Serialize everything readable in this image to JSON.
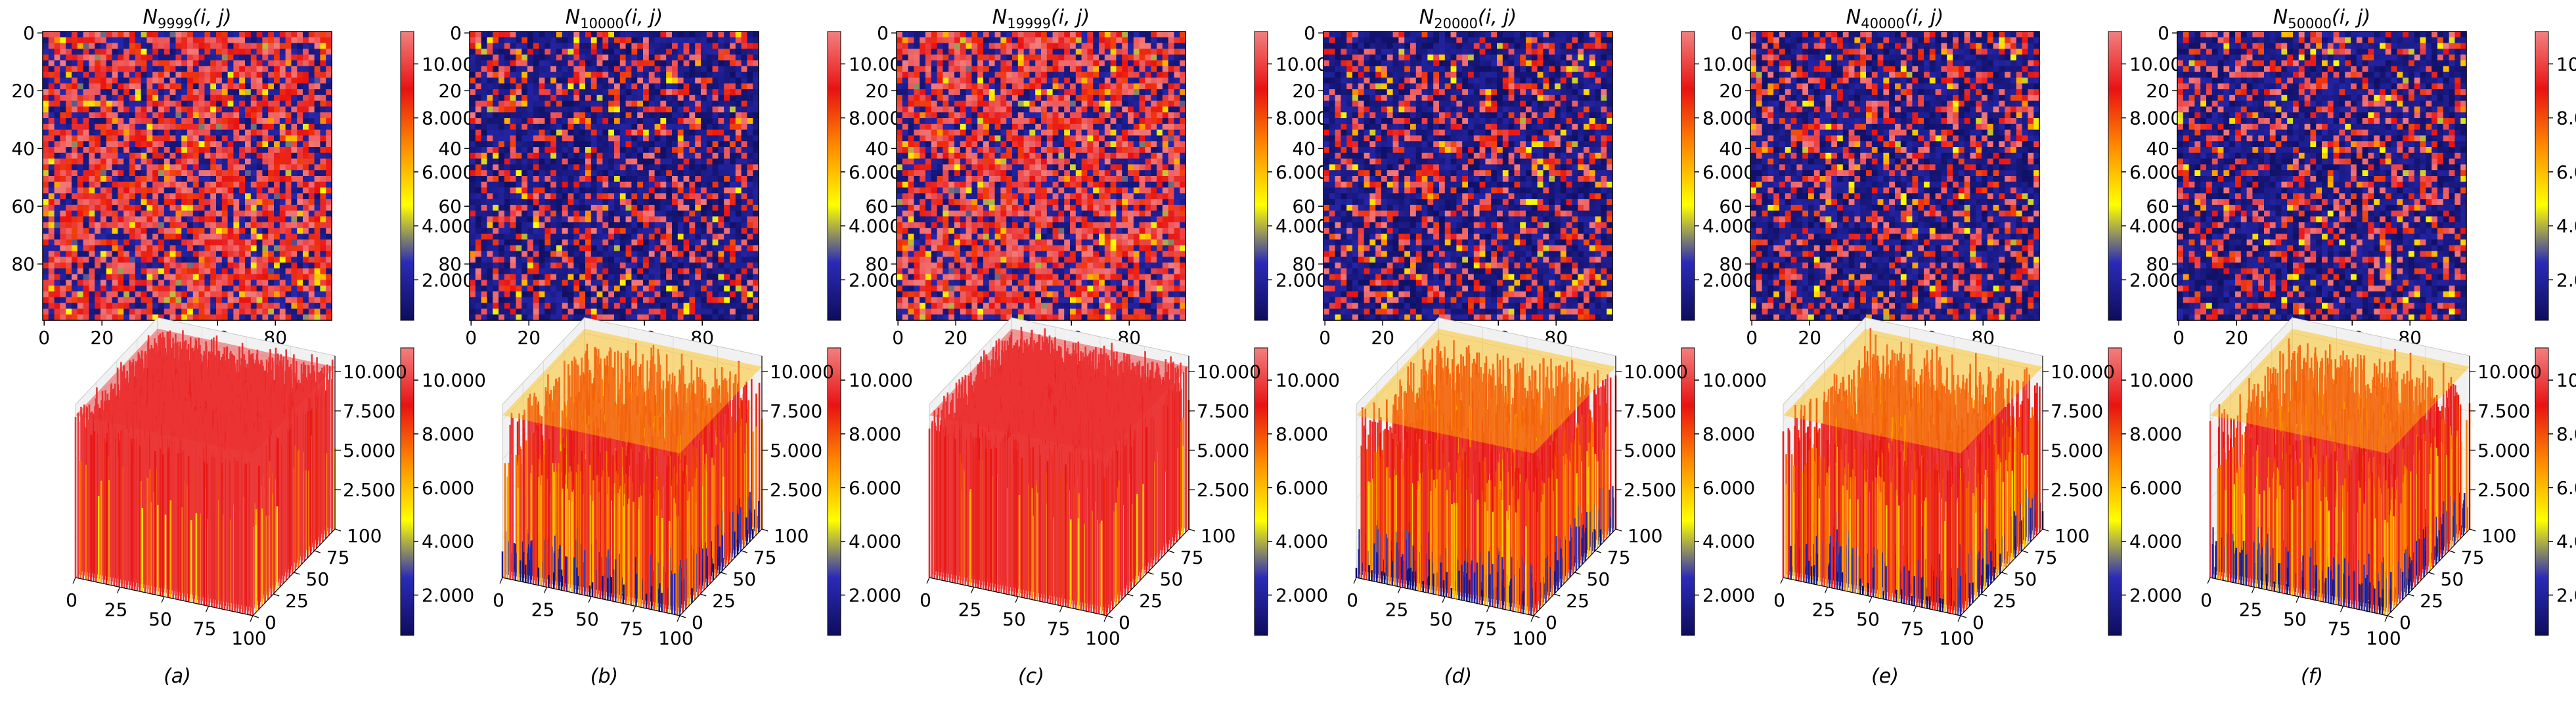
{
  "figure_type": "heatmap and surface plot grid",
  "colorbar_ticks": [
    "2.000",
    "4.000",
    "6.000",
    "8.000",
    "10.000"
  ],
  "colorbar_range": [
    0.5,
    11.2
  ],
  "heatmap_xticks": [
    "0",
    "20",
    "40",
    "60",
    "80"
  ],
  "heatmap_yticks": [
    "0",
    "20",
    "40",
    "60",
    "80"
  ],
  "surface_zticks": [
    "2.500",
    "5.000",
    "7.500",
    "10.000"
  ],
  "surface_xticks": [
    "0",
    "25",
    "50",
    "75",
    "100"
  ],
  "surface_yticks": [
    "0",
    "25",
    "50",
    "75",
    "100"
  ],
  "colormap": [
    "#0d0d5c",
    "#2a2ab8",
    "#ffff00",
    "#ff8c00",
    "#e81212",
    "#f28080"
  ],
  "chart_data": [
    {
      "type": "heatmap",
      "panel": "a",
      "title_base": "N",
      "title_sub": "9999",
      "title_args": "(i, j)",
      "caption": "(a)",
      "grid": [
        100,
        100
      ],
      "value_range": [
        0.5,
        11.2
      ],
      "dominant_value": 9.5,
      "state": "high"
    },
    {
      "type": "heatmap",
      "panel": "b",
      "title_base": "N",
      "title_sub": "10000",
      "title_args": "(i, j)",
      "caption": "(b)",
      "grid": [
        100,
        100
      ],
      "value_range": [
        0.5,
        11.2
      ],
      "dominant_value": 1.5,
      "state": "low"
    },
    {
      "type": "heatmap",
      "panel": "c",
      "title_base": "N",
      "title_sub": "19999",
      "title_args": "(i, j)",
      "caption": "(c)",
      "grid": [
        100,
        100
      ],
      "value_range": [
        0.5,
        11.2
      ],
      "dominant_value": 9.5,
      "state": "high"
    },
    {
      "type": "heatmap",
      "panel": "d",
      "title_base": "N",
      "title_sub": "20000",
      "title_args": "(i, j)",
      "caption": "(d)",
      "grid": [
        100,
        100
      ],
      "value_range": [
        0.5,
        11.2
      ],
      "dominant_value": 1.5,
      "state": "low"
    },
    {
      "type": "heatmap",
      "panel": "e",
      "title_base": "N",
      "title_sub": "40000",
      "title_args": "(i, j)",
      "caption": "(e)",
      "grid": [
        100,
        100
      ],
      "value_range": [
        0.5,
        11.2
      ],
      "dominant_value": 1.5,
      "state": "low"
    },
    {
      "type": "heatmap",
      "panel": "f",
      "title_base": "N",
      "title_sub": "50000",
      "title_args": "(i, j)",
      "caption": "(f)",
      "grid": [
        100,
        100
      ],
      "value_range": [
        0.5,
        11.2
      ],
      "dominant_value": 1.5,
      "state": "low"
    }
  ]
}
